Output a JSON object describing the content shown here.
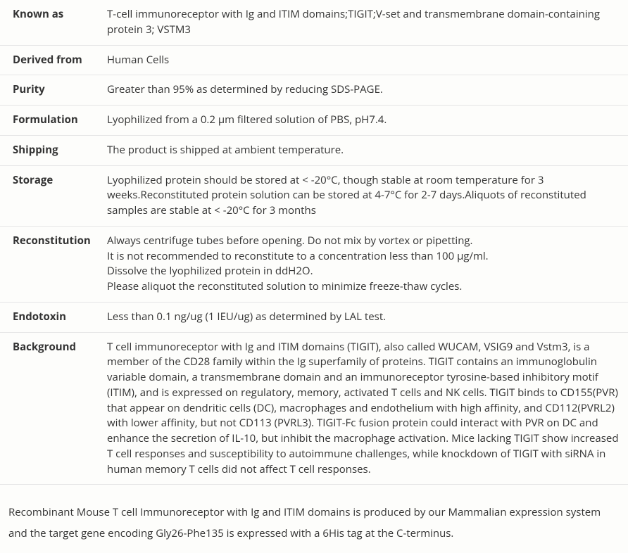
{
  "rows": [
    {
      "label": "Known as",
      "lines": [
        "T-cell immunoreceptor with Ig and ITIM domains;TIGIT;V-set and transmembrane domain-containing protein 3; VSTM3"
      ]
    },
    {
      "label": "Derived from",
      "lines": [
        "Human Cells"
      ]
    },
    {
      "label": "Purity",
      "lines": [
        "Greater than 95% as determined by reducing SDS-PAGE."
      ]
    },
    {
      "label": "Formulation",
      "lines": [
        "Lyophilized from a 0.2 μm filtered solution of PBS, pH7.4."
      ]
    },
    {
      "label": "Shipping",
      "lines": [
        "The product is shipped at ambient temperature."
      ]
    },
    {
      "label": "Storage",
      "lines": [
        "Lyophilized protein should be stored at < -20°C, though stable at room temperature for 3 weeks.Reconstituted protein solution can be stored at 4-7°C for 2-7 days.Aliquots of reconstituted samples are stable at < -20°C for 3 months"
      ]
    },
    {
      "label": "Reconstitution",
      "lines": [
        "Always centrifuge tubes before opening. Do not mix by vortex or pipetting.",
        "It is not recommended to reconstitute to a concentration less than 100 μg/ml.",
        "Dissolve the lyophilized protein in ddH2O.",
        "Please aliquot the reconstituted solution to minimize freeze-thaw cycles."
      ]
    },
    {
      "label": "Endotoxin",
      "lines": [
        "Less than 0.1 ng/ug (1 IEU/ug) as determined by LAL test."
      ]
    },
    {
      "label": "Background",
      "lines": [
        "T cell immunoreceptor with Ig and ITIM domains (TIGIT), also called WUCAM, VSIG9 and Vstm3, is a member of the CD28 family within the Ig superfamily of proteins. TIGIT contains an immunoglobulin variable domain, a transmembrane domain and an immunoreceptor tyrosine-based inhibitory motif (ITIM), and is expressed on regulatory, memory, activated T cells and NK cells. TIGIT binds to CD155(PVR) that appear on dendritic cells (DC), macrophages and endothelium with high affinity, and CD112(PVRL2) with lower affinity, but not CD113 (PVRL3). TIGIT-Fc fusion protein could interact with PVR on DC and enhance the secretion of IL-10, but inhibit the macrophage activation. Mice lacking TIGIT show increased T cell responses and susceptibility to autoimmune challenges, while knockdown of TIGIT with siRNA in human memory T cells did not affect T cell responses."
      ]
    }
  ],
  "footer": "Recombinant Mouse T cell Immunoreceptor with Ig and ITIM domains is produced by our Mammalian expression system and the target gene encoding Gly26-Phe135 is expressed with a 6His tag at the C-terminus."
}
